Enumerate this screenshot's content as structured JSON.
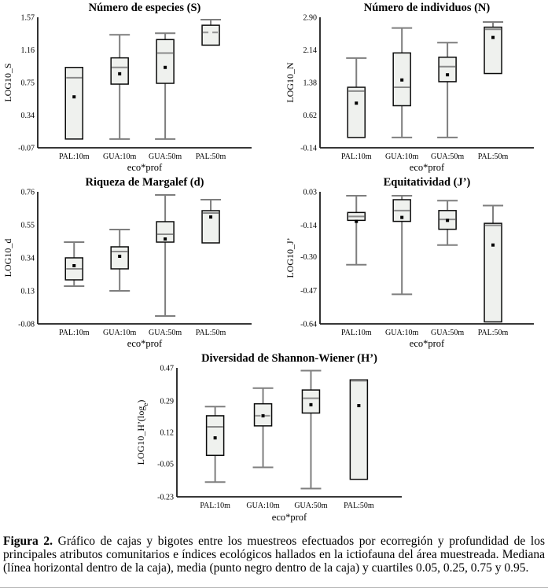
{
  "figure": {
    "caption_label": "Figura 2.",
    "caption_text": " Gráfico de cajas y bigotes entre los muestreos efectuados por ecorregión y profundidad de los principales atributos comunitarios e índices ecológicos hallados en la ictiofauna del área muestreada. Mediana (línea horizontal dentro de la caja), media (punto negro dentro de la caja) y cuartiles 0.05, 0.25, 0.75 y 0.95."
  },
  "colors": {
    "box_fill": "#eff1ee",
    "box_stroke": "#0a0a0a",
    "median": "#8a8a8a",
    "median_dashed": "#949494",
    "whisker": "#7e7e7e",
    "mean": "#000000",
    "axis": "#1c1c1c",
    "text": "#000000"
  },
  "chart_data": [
    {
      "type": "box",
      "key": "numero-especies",
      "title": "Número de especies (S)",
      "xlabel": "eco*prof",
      "ylabel": "LOG10_S",
      "ylim": [
        -0.07,
        1.57
      ],
      "yticks": [
        "1.57",
        "1.16",
        "0.75",
        "0.34",
        "-0.07"
      ],
      "categories": [
        "PAL:10m",
        "GUA:10m",
        "GUA:50m",
        "PAL:50m"
      ],
      "boxes": [
        {
          "q05": null,
          "q25": 0.04,
          "median": 0.81,
          "q75": 0.94,
          "q95": null,
          "mean": 0.57,
          "median_dashed": false
        },
        {
          "q05": 0.04,
          "q25": 0.73,
          "median": 0.94,
          "q75": 1.06,
          "q95": 1.35,
          "mean": 0.86,
          "median_dashed": false
        },
        {
          "q05": 0.04,
          "q25": 0.74,
          "median": 1.12,
          "q75": 1.29,
          "q95": 1.37,
          "mean": 0.94,
          "median_dashed": false
        },
        {
          "q05": null,
          "q25": 1.22,
          "median": 1.38,
          "q75": 1.47,
          "q95": 1.54,
          "mean": null,
          "median_dashed": true
        }
      ]
    },
    {
      "type": "box",
      "key": "numero-individuos",
      "title": "Número de individuos (N)",
      "xlabel": "eco*prof",
      "ylabel": "LOG10_N",
      "ylim": [
        -0.14,
        2.9
      ],
      "yticks": [
        "2.90",
        "2.14",
        "1.38",
        "0.62",
        "-0.14"
      ],
      "categories": [
        "PAL:10m",
        "GUA:10m",
        "GUA:50m",
        "PAL:50m"
      ],
      "boxes": [
        {
          "q05": null,
          "q25": 0.1,
          "median": 1.18,
          "q75": 1.27,
          "q95": 1.95,
          "mean": 0.9,
          "median_dashed": false
        },
        {
          "q05": 0.1,
          "q25": 0.84,
          "median": 1.27,
          "q75": 2.07,
          "q95": 2.65,
          "mean": 1.44,
          "median_dashed": false
        },
        {
          "q05": 0.1,
          "q25": 1.4,
          "median": 1.75,
          "q75": 1.97,
          "q95": 2.31,
          "mean": 1.56,
          "median_dashed": false
        },
        {
          "q05": null,
          "q25": 1.59,
          "median": 2.62,
          "q75": 2.67,
          "q95": 2.79,
          "mean": 2.43,
          "median_dashed": false
        }
      ]
    },
    {
      "type": "box",
      "key": "riqueza-margalef",
      "title": "Riqueza de Margalef (d)",
      "xlabel": "eco*prof",
      "ylabel": "LOG10_d",
      "ylim": [
        -0.08,
        0.76
      ],
      "yticks": [
        "0.76",
        "0.55",
        "0.34",
        "0.13",
        "-0.08"
      ],
      "categories": [
        "PAL:10m",
        "GUA:10m",
        "GUA:50m",
        "PAL:50m"
      ],
      "boxes": [
        {
          "q05": 0.16,
          "q25": 0.2,
          "median": 0.27,
          "q75": 0.34,
          "q95": 0.44,
          "mean": 0.29,
          "median_dashed": false
        },
        {
          "q05": 0.13,
          "q25": 0.27,
          "median": 0.38,
          "q75": 0.41,
          "q95": 0.52,
          "mean": 0.35,
          "median_dashed": false
        },
        {
          "q05": -0.03,
          "q25": 0.44,
          "median": 0.49,
          "q75": 0.57,
          "q95": 0.74,
          "mean": 0.46,
          "median_dashed": false
        },
        {
          "q05": null,
          "q25": 0.435,
          "median": 0.625,
          "q75": 0.64,
          "q95": 0.71,
          "mean": 0.6,
          "median_dashed": false
        }
      ]
    },
    {
      "type": "box",
      "key": "equitatividad",
      "title": "Equitatividad (J’)",
      "xlabel": "eco*prof",
      "ylabel": "LOG10_J’",
      "ylim": [
        -0.64,
        0.03
      ],
      "yticks": [
        "0.03",
        "-0.14",
        "-0.30",
        "-0.47",
        "-0.64"
      ],
      "categories": [
        "PAL:10m",
        "GUA:10m",
        "GUA:50m",
        "PAL:50m"
      ],
      "boxes": [
        {
          "q05": -0.34,
          "q25": -0.115,
          "median": -0.095,
          "q75": -0.075,
          "q95": 0.01,
          "mean": -0.12,
          "median_dashed": false
        },
        {
          "q05": -0.49,
          "q25": -0.12,
          "median": -0.065,
          "q75": -0.01,
          "q95": 0.01,
          "mean": -0.1,
          "median_dashed": false
        },
        {
          "q05": -0.24,
          "q25": -0.16,
          "median": -0.11,
          "q75": -0.065,
          "q95": -0.015,
          "mean": -0.115,
          "median_dashed": false
        },
        {
          "q05": null,
          "q25": -0.63,
          "median": -0.14,
          "q75": -0.13,
          "q95": -0.04,
          "mean": -0.24,
          "median_dashed": false
        }
      ]
    },
    {
      "type": "box",
      "key": "shannon-wiener",
      "title": "Diversidad de Shannon-Wiener (H’)",
      "xlabel": "eco*prof",
      "ylabel": "LOG10_H’(loge)",
      "ylabel_parts": [
        {
          "t": "LOG10_H’(log"
        },
        {
          "t": "e",
          "sub": true
        },
        {
          "t": ")"
        }
      ],
      "ylim": [
        -0.23,
        0.47
      ],
      "yticks": [
        "0.47",
        "0.29",
        "0.12",
        "-0.05",
        "-0.23"
      ],
      "categories": [
        "PAL:10m",
        "GUA:10m",
        "GUA:50m",
        "PAL:50m"
      ],
      "boxes": [
        {
          "q05": -0.15,
          "q25": -0.005,
          "median": 0.15,
          "q75": 0.21,
          "q95": 0.26,
          "mean": 0.09,
          "median_dashed": false
        },
        {
          "q05": -0.07,
          "q25": 0.155,
          "median": 0.21,
          "q75": 0.275,
          "q95": 0.36,
          "mean": 0.21,
          "median_dashed": true
        },
        {
          "q05": -0.185,
          "q25": 0.225,
          "median": 0.305,
          "q75": 0.35,
          "q95": 0.455,
          "mean": 0.27,
          "median_dashed": false
        },
        {
          "q05": null,
          "q25": -0.135,
          "median": 0.4,
          "q75": 0.405,
          "q95": null,
          "mean": 0.265,
          "median_dashed": false
        }
      ]
    }
  ]
}
